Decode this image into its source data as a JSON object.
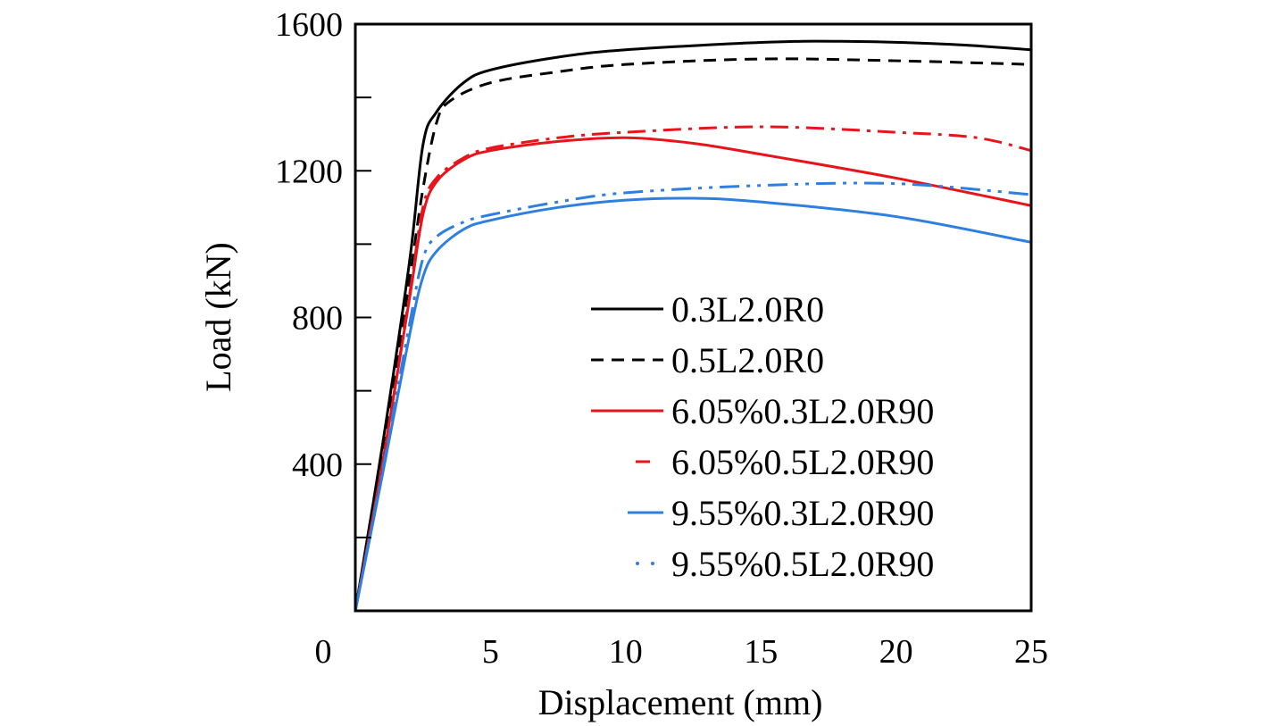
{
  "chart_data": {
    "type": "line",
    "title": "",
    "xlabel": "Displacement (mm)",
    "ylabel": "Load (kN)",
    "xlim": [
      0,
      25
    ],
    "ylim": [
      0,
      1600
    ],
    "xticks": [
      0,
      5,
      10,
      15,
      20,
      25
    ],
    "yticks": [
      400,
      800,
      1200,
      1600
    ],
    "yminor": [
      200,
      600,
      1000,
      1400
    ],
    "grid": false,
    "legend_position": "bottom-right",
    "series": [
      {
        "name": "0.3L2.0R0",
        "color": "#000000",
        "style": "solid",
        "x": [
          0,
          1,
          2,
          2.5,
          3,
          4,
          5,
          7.5,
          10,
          15,
          18,
          22,
          25
        ],
        "y": [
          0,
          450,
          950,
          1270,
          1360,
          1440,
          1475,
          1510,
          1530,
          1550,
          1553,
          1545,
          1530
        ]
      },
      {
        "name": "0.5L2.0R0",
        "color": "#000000",
        "style": "dashed",
        "x": [
          0,
          1,
          2,
          2.5,
          3,
          3.5,
          5,
          7.5,
          10,
          15,
          20,
          25
        ],
        "y": [
          0,
          420,
          900,
          1150,
          1330,
          1390,
          1440,
          1470,
          1490,
          1505,
          1500,
          1490
        ]
      },
      {
        "name": "6.05%0.3L2.0R90",
        "color": "#e8141c",
        "style": "solid",
        "x": [
          0,
          1,
          2,
          2.5,
          3,
          4,
          5,
          7.5,
          10,
          12.5,
          15,
          20,
          25
        ],
        "y": [
          0,
          400,
          850,
          1080,
          1170,
          1230,
          1255,
          1280,
          1290,
          1275,
          1245,
          1180,
          1105
        ]
      },
      {
        "name": "6.05%0.5L2.0R90",
        "color": "#e8141c",
        "style": "dashdot",
        "x": [
          0,
          1,
          2,
          2.5,
          3,
          4,
          5,
          7.5,
          10,
          15,
          20,
          23,
          25
        ],
        "y": [
          0,
          400,
          860,
          1100,
          1180,
          1235,
          1262,
          1290,
          1305,
          1320,
          1305,
          1290,
          1255
        ]
      },
      {
        "name": "9.55%0.3L2.0R90",
        "color": "#2f7fe0",
        "style": "solid",
        "x": [
          0,
          1,
          2,
          2.5,
          3,
          4,
          5,
          7.5,
          10,
          12.5,
          15,
          20,
          25
        ],
        "y": [
          0,
          370,
          750,
          910,
          980,
          1040,
          1065,
          1100,
          1120,
          1125,
          1115,
          1075,
          1005
        ]
      },
      {
        "name": "9.55%0.5L2.0R90",
        "color": "#2f7fe0",
        "style": "dashdotdot",
        "x": [
          0,
          1,
          2,
          2.5,
          3,
          4,
          5,
          7.5,
          10,
          15,
          20,
          25
        ],
        "y": [
          0,
          380,
          780,
          960,
          1020,
          1060,
          1080,
          1115,
          1140,
          1160,
          1165,
          1135
        ]
      }
    ]
  }
}
